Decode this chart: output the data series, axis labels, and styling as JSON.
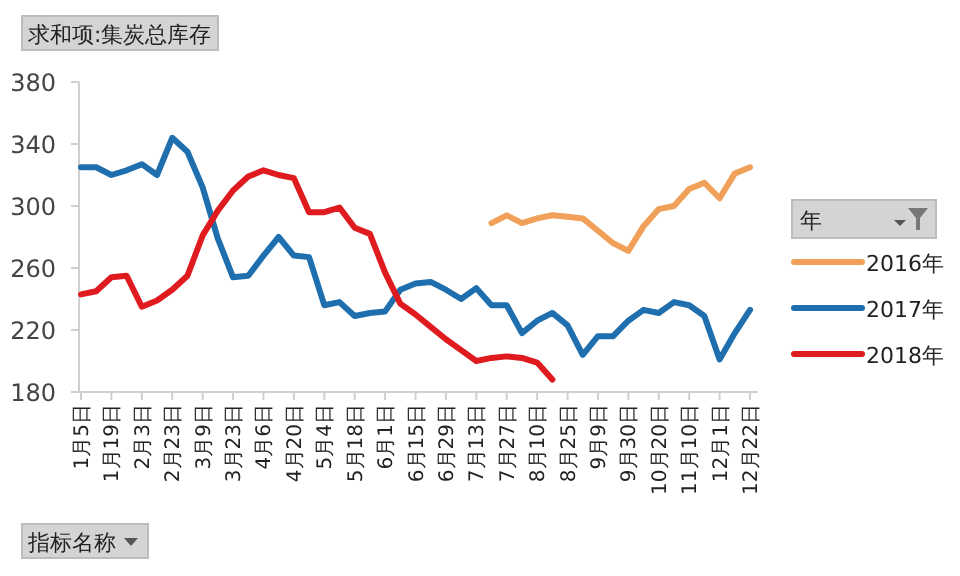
{
  "chart_data": {
    "type": "line",
    "title": "求和项:集炭总库存",
    "legend_title": "年",
    "annotations": [
      "指标名称"
    ],
    "categories": [
      "1月5日",
      null,
      "1月19日",
      null,
      "2月3日",
      null,
      "2月23日",
      null,
      "3月9日",
      null,
      "3月23日",
      null,
      "4月6日",
      null,
      "4月20日",
      null,
      "5月4日",
      null,
      "5月18日",
      null,
      "6月1日",
      null,
      "6月15日",
      null,
      "6月29日",
      null,
      "7月13日",
      null,
      "7月27日",
      null,
      "8月10日",
      null,
      "8月25日",
      null,
      "9月9日",
      null,
      "9月30日",
      null,
      "10月20日",
      null,
      "11月10日",
      null,
      "12月1日",
      null,
      "12月22日"
    ],
    "series": [
      {
        "name": "2016年",
        "color": "#f0a058",
        "values": [
          null,
          null,
          null,
          null,
          null,
          null,
          null,
          null,
          null,
          null,
          null,
          null,
          null,
          null,
          null,
          null,
          null,
          null,
          null,
          null,
          null,
          null,
          null,
          null,
          null,
          null,
          null,
          289,
          294,
          289,
          292,
          294,
          293,
          292,
          284,
          276,
          271,
          287,
          298,
          300,
          311,
          315,
          305,
          321,
          325
        ]
      },
      {
        "name": "2017年",
        "color": "#1f6fae",
        "values": [
          325,
          325,
          320,
          323,
          327,
          320,
          344,
          335,
          312,
          279,
          254,
          255,
          268,
          280,
          268,
          267,
          236,
          238,
          229,
          231,
          232,
          246,
          250,
          251,
          246,
          240,
          247,
          236,
          236,
          218,
          226,
          231,
          223,
          204,
          216,
          216,
          226,
          233,
          231,
          238,
          236,
          229,
          201,
          218,
          233
        ]
      },
      {
        "name": "2018年",
        "color": "#e01b1f",
        "values": [
          243,
          245,
          254,
          255,
          235,
          239,
          246,
          255,
          281,
          297,
          310,
          319,
          323,
          320,
          318,
          296,
          296,
          299,
          286,
          282,
          257,
          237,
          230,
          222,
          214,
          207,
          200,
          202,
          203,
          202,
          199,
          188,
          null,
          null,
          null,
          null,
          null,
          null,
          null,
          null,
          null,
          null,
          null,
          null,
          null
        ]
      }
    ],
    "ylim": [
      180,
      380
    ],
    "yticks": [
      180,
      220,
      260,
      300,
      340,
      380
    ],
    "grid": false,
    "legend": "right",
    "marker": "none",
    "line_style": "solid"
  }
}
